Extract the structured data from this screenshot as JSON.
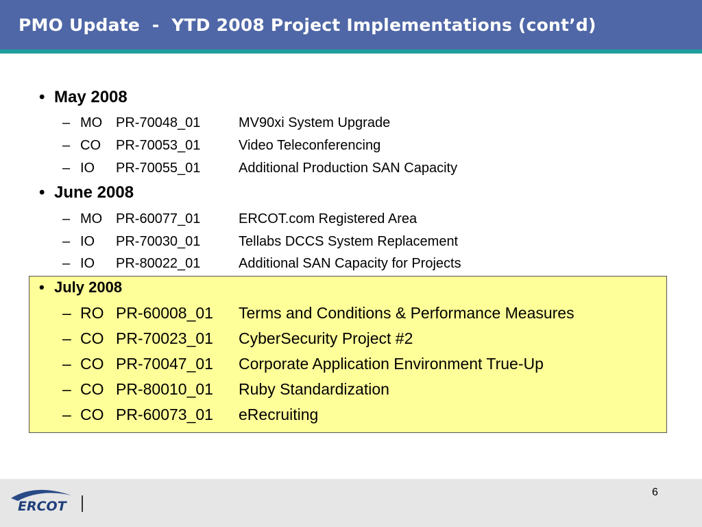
{
  "header": {
    "title": "PMO Update  -  YTD 2008 Project Implementations (cont’d)"
  },
  "sections": [
    {
      "heading": "May 2008",
      "bullet": "•",
      "items": [
        {
          "dash": "–",
          "code": "MO",
          "project": "PR-70048_01",
          "description": "MV90xi System Upgrade"
        },
        {
          "dash": "–",
          "code": "CO",
          "project": "PR-70053_01",
          "description": "Video Teleconferencing"
        },
        {
          "dash": "–",
          "code": "IO",
          "project": "PR-70055_01",
          "description": "Additional Production SAN Capacity"
        }
      ]
    },
    {
      "heading": "June 2008",
      "bullet": "•",
      "items": [
        {
          "dash": "–",
          "code": "MO",
          "project": "PR-60077_01",
          "description": "ERCOT.com Registered Area"
        },
        {
          "dash": "–",
          "code": "IO",
          "project": "PR-70030_01",
          "description": "Tellabs DCCS System Replacement"
        },
        {
          "dash": "–",
          "code": "IO",
          "project": "PR-80022_01",
          "description": "Additional SAN Capacity for Projects"
        }
      ]
    },
    {
      "heading": "July 2008",
      "bullet": "•",
      "items": [
        {
          "dash": "–",
          "code": "RO",
          "project": "PR-60008_01",
          "description": "Terms and Conditions & Performance Measures"
        },
        {
          "dash": "–",
          "code": "CO",
          "project": "PR-70023_01",
          "description": "CyberSecurity Project #2"
        },
        {
          "dash": "–",
          "code": "CO",
          "project": "PR-70047_01",
          "description": "Corporate Application Environment True-Up"
        },
        {
          "dash": "–",
          "code": "CO",
          "project": "PR-80010_01",
          "description": "Ruby Standardization"
        },
        {
          "dash": "–",
          "code": "CO",
          "project": "PR-60073_01",
          "description": "eRecruiting"
        }
      ]
    }
  ],
  "footer": {
    "logo_text": "ERCOT",
    "page_number": "6"
  },
  "colors": {
    "title_bar": "#4f67a6",
    "title_rule": "#1f9e9b",
    "highlight": "#ffff99",
    "footer": "#e6e6e6"
  }
}
